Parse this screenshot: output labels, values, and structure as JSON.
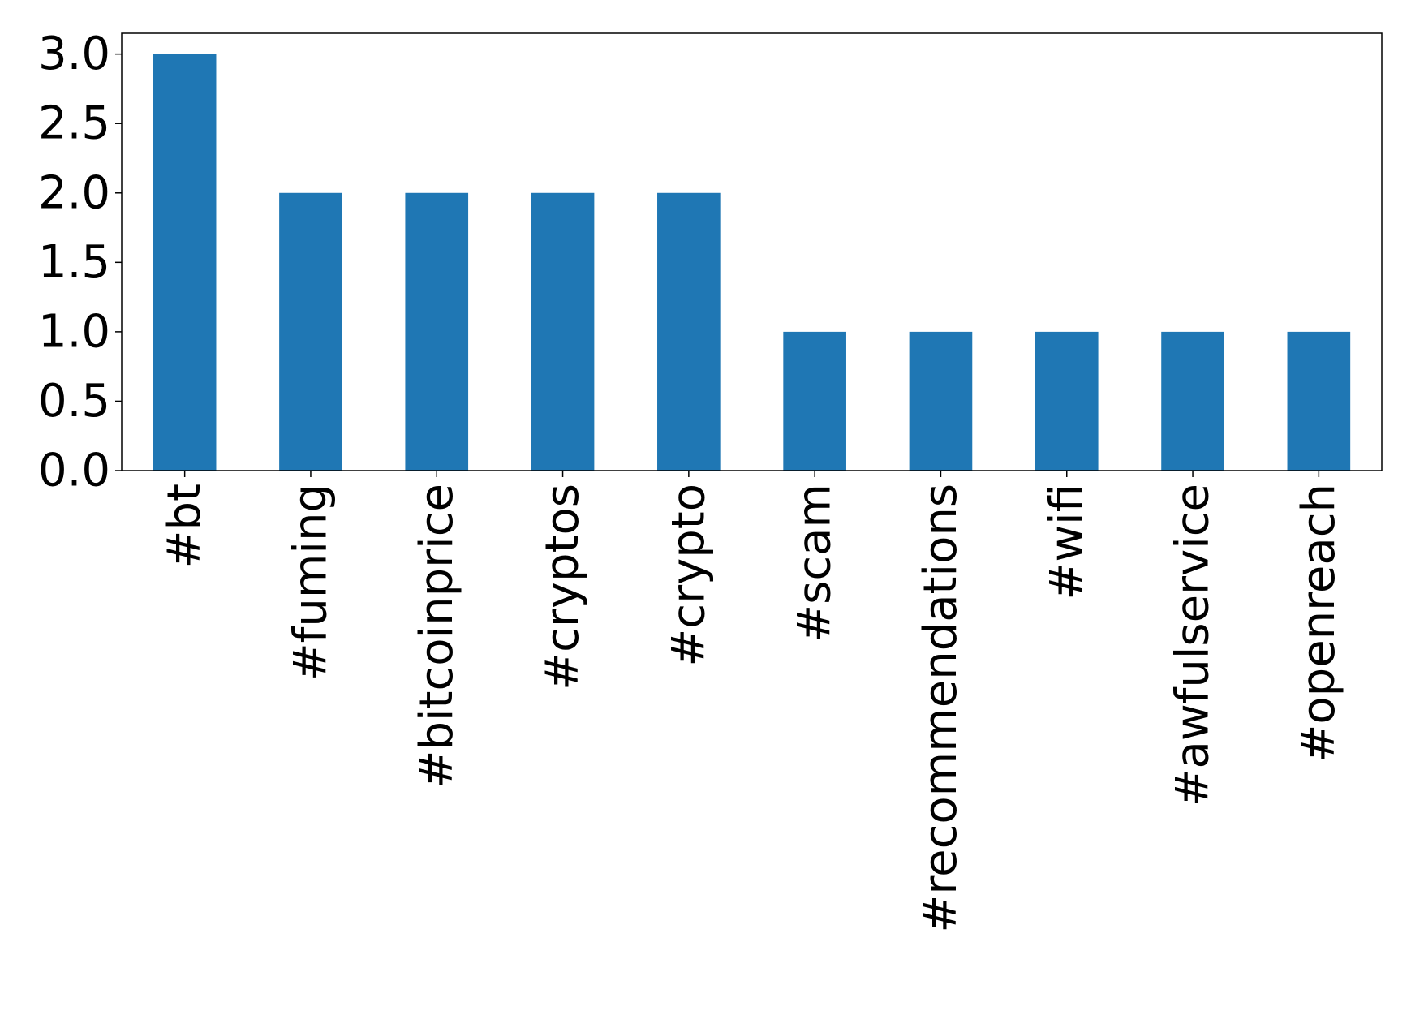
{
  "chart_data": {
    "type": "bar",
    "categories": [
      "#bt",
      "#fuming",
      "#bitcoinprice",
      "#cryptos",
      "#crypto",
      "#scam",
      "#recommendations",
      "#wifi",
      "#awfulservice",
      "#openreach"
    ],
    "values": [
      3,
      2,
      2,
      2,
      2,
      1,
      1,
      1,
      1,
      1
    ],
    "yticks": [
      "0.0",
      "0.5",
      "1.0",
      "1.5",
      "2.0",
      "2.5",
      "3.0"
    ],
    "ylim": [
      0,
      3.15
    ],
    "title": "",
    "xlabel": "",
    "ylabel": "",
    "bar_color": "#1f77b4",
    "grid": false,
    "x_tick_rotation": "vertical"
  }
}
